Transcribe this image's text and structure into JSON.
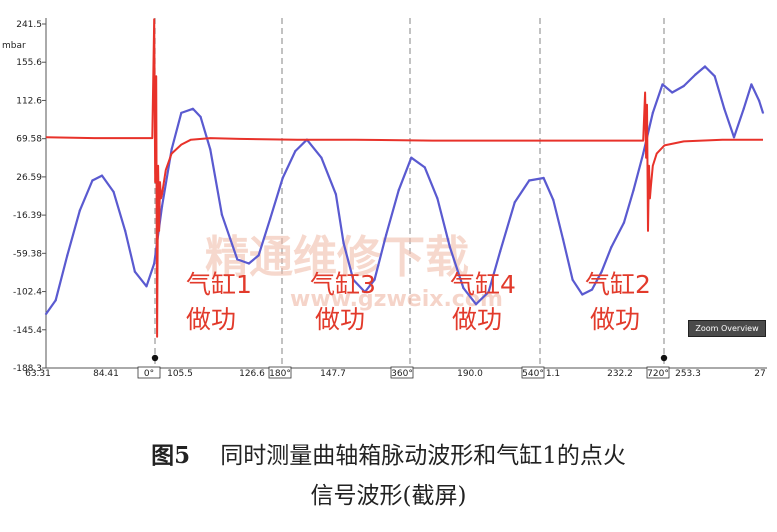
{
  "chart_data": {
    "type": "line",
    "y_unit": "mbar",
    "y_ticks": [
      "241.5",
      "155.6",
      "112.6",
      "69.58",
      "26.59",
      "-16.39",
      "-59.38",
      "-102.4",
      "-145.4",
      "-188.3"
    ],
    "x_ticks": [
      "63.31",
      "84.41",
      "0°",
      "105.5",
      "126.6",
      "180°",
      "147.7",
      "360°",
      "190.0",
      "540°",
      "1.1",
      "232.2",
      "720°",
      "253.3",
      "27"
    ],
    "crank_markers": [
      "0°",
      "180°",
      "360°",
      "540°",
      "720°"
    ],
    "ylim": [
      -188.3,
      241.5
    ],
    "series": [
      {
        "color": "#5a5ad0",
        "x": [
          0,
          10,
          22,
          35,
          48,
          58,
          70,
          82,
          92,
          104,
          112,
          120,
          130,
          140,
          152,
          160,
          170,
          182,
          198,
          210,
          220,
          232,
          245,
          258,
          270,
          285,
          300,
          308,
          318,
          330,
          340,
          352,
          365,
          378,
          392,
          405,
          418,
          432,
          445,
          458,
          470,
          485,
          500,
          515,
          525,
          535,
          545,
          555,
          565,
          575,
          585,
          598,
          608,
          618,
          628,
          638,
          648,
          660,
          672,
          682,
          692,
          702,
          712,
          722,
          730,
          738,
          742
        ],
        "y": [
          -122,
          -105,
          -50,
          5,
          42,
          48,
          28,
          -20,
          -70,
          -88,
          -60,
          10,
          80,
          125,
          130,
          120,
          80,
          0,
          -55,
          -60,
          -50,
          -5,
          45,
          78,
          92,
          70,
          25,
          -35,
          -80,
          -95,
          -80,
          -25,
          30,
          70,
          58,
          20,
          -40,
          -90,
          -110,
          -95,
          -45,
          15,
          42,
          45,
          18,
          -30,
          -80,
          -98,
          -92,
          -70,
          -40,
          -10,
          30,
          75,
          125,
          160,
          150,
          158,
          172,
          182,
          170,
          130,
          95,
          130,
          160,
          140,
          125
        ]
      },
      {
        "color": "#e8322a",
        "x": [
          0,
          50,
          105,
          108,
          110,
          112,
          113,
          114,
          115,
          116,
          117,
          118,
          119,
          120,
          124,
          130,
          140,
          150,
          170,
          200,
          260,
          320,
          400,
          500,
          600,
          612,
          618,
          620,
          621,
          622,
          623,
          624,
          625,
          626,
          628,
          632,
          640,
          660,
          700,
          742
        ],
        "y": [
          95,
          94,
          94,
          94,
          94,
          240,
          40,
          170,
          -150,
          60,
          -20,
          40,
          20,
          25,
          55,
          75,
          86,
          92,
          94,
          93,
          92,
          92,
          91,
          91,
          91,
          91,
          91,
          150,
          70,
          135,
          -20,
          60,
          20,
          35,
          60,
          75,
          85,
          90,
          92,
          92
        ]
      }
    ],
    "annotations": [
      {
        "line1": "气缸1",
        "line2": "做功"
      },
      {
        "line1": "气缸3",
        "line2": "做功"
      },
      {
        "line1": "气缸4",
        "line2": "做功"
      },
      {
        "line1": "气缸2",
        "line2": "做功"
      }
    ]
  },
  "watermark": {
    "text": "精通维修下载",
    "url": "www.gzweix.com"
  },
  "zoom_button_label": "Zoom Overview",
  "caption": {
    "label": "图5",
    "line1": "同时测量曲轴箱脉动波形和气缸1的点火",
    "line2": "信号波形(截屏)"
  },
  "colors": {
    "pulse": "#5a5ad0",
    "ignition": "#e8322a",
    "annotation": "#e23a2b",
    "watermark": "#f0b9a6"
  }
}
